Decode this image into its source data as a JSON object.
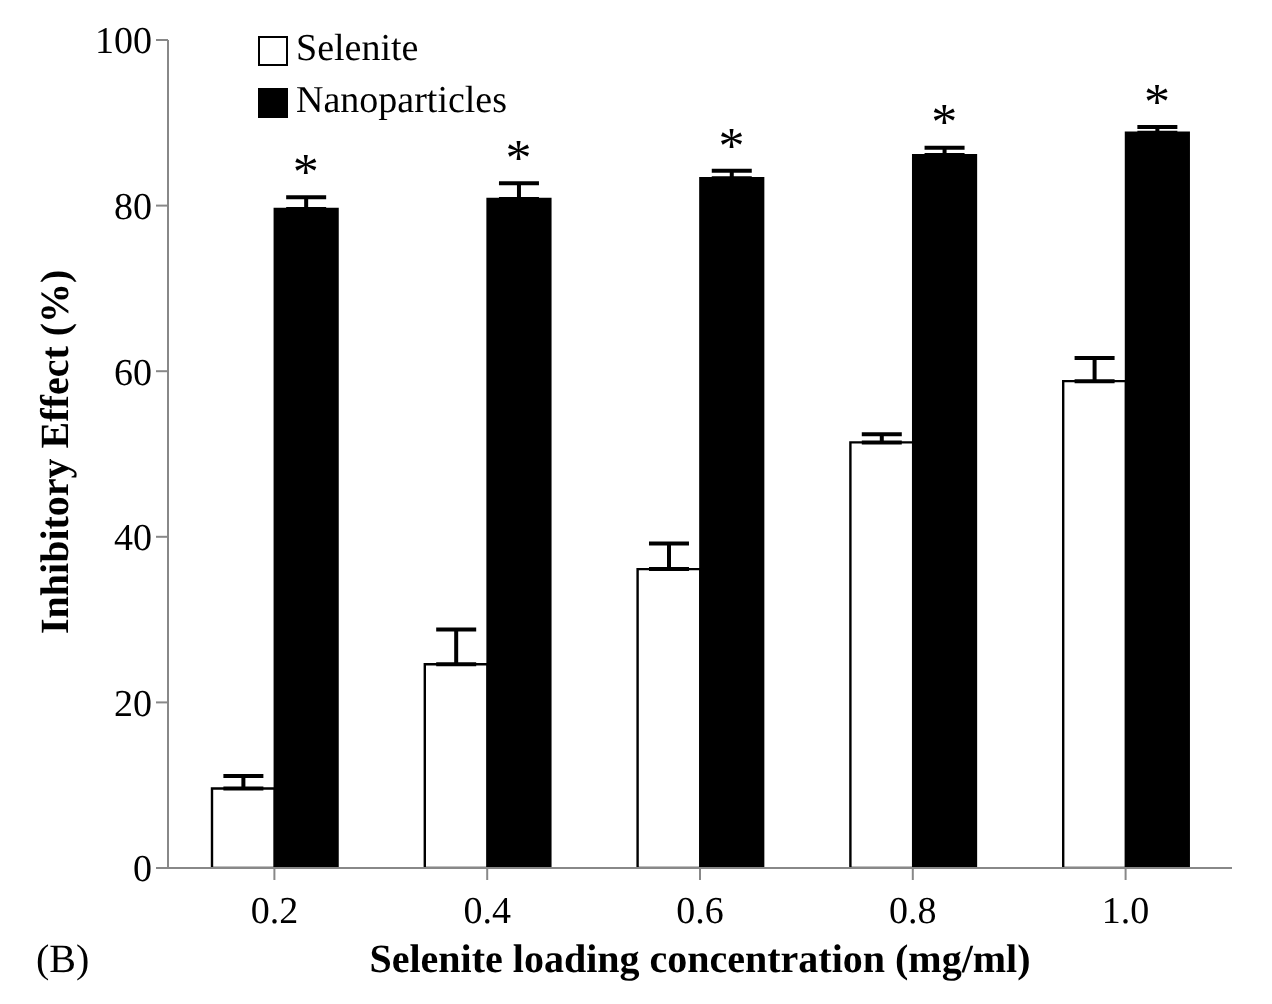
{
  "chart_data": {
    "type": "bar",
    "xlabel": "Selenite loading concentration (mg/ml)",
    "ylabel": "Inhibitory Effect (%)",
    "categories": [
      "0.2",
      "0.4",
      "0.6",
      "0.8",
      "1.0"
    ],
    "series": [
      {
        "name": "Selenite",
        "color": "#ffffff",
        "values": [
          9.6,
          24.6,
          36.1,
          51.4,
          58.8
        ],
        "errors": [
          [
            9.6,
            11.1
          ],
          [
            24.6,
            28.8
          ],
          [
            36.1,
            39.2
          ],
          [
            51.4,
            52.4
          ],
          [
            58.8,
            61.6
          ]
        ]
      },
      {
        "name": "Nanoparticles",
        "color": "#000000",
        "values": [
          79.6,
          80.8,
          83.3,
          86.1,
          88.8
        ],
        "errors": [
          [
            79.6,
            81.0
          ],
          [
            80.8,
            82.7
          ],
          [
            83.3,
            84.2
          ],
          [
            86.1,
            87.0
          ],
          [
            88.8,
            89.5
          ]
        ]
      }
    ],
    "ylim": [
      0,
      100
    ],
    "yticks": [
      0,
      20,
      40,
      60,
      80,
      100
    ],
    "grid": false,
    "legend": "top left",
    "annotations": [
      {
        "text": "*",
        "x": "0.2",
        "y": 79.6
      },
      {
        "text": "*",
        "x": "0.4",
        "y": 80.8
      },
      {
        "text": "*",
        "x": "0.6",
        "y": 83.3
      },
      {
        "text": "*",
        "x": "0.8",
        "y": 86.1
      },
      {
        "text": "*",
        "x": "1.0",
        "y": 88.8
      },
      "(B)"
    ]
  }
}
